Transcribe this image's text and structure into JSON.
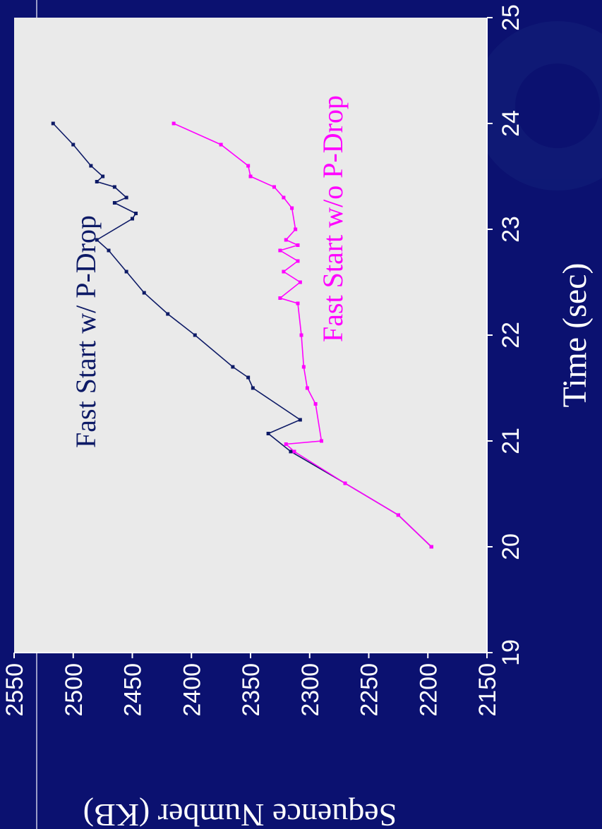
{
  "colors": {
    "background": "#0b1170",
    "plot_area": "#eaeaea",
    "series_with_pdrop": "#0d1a66",
    "series_without_pdrop": "#ff00ff",
    "text": "#ffffff"
  },
  "chart_data": {
    "type": "line",
    "orientation": "rotated-90",
    "xlabel": "Time (sec)",
    "ylabel": "Sequence Number (KB)",
    "xlim": [
      19,
      25
    ],
    "ylim": [
      2150,
      2550
    ],
    "xticks": [
      "19",
      "20",
      "21",
      "22",
      "23",
      "24",
      "25"
    ],
    "yticks": [
      "2150",
      "2200",
      "2250",
      "2300",
      "2350",
      "2400",
      "2450",
      "2500",
      "2550"
    ],
    "grid": false,
    "legend": "none",
    "series": [
      {
        "name": "Fast Start w/ P-Drop",
        "color": "#0d1a66",
        "points": [
          [
            20.0,
            2197
          ],
          [
            20.3,
            2225
          ],
          [
            20.6,
            2270
          ],
          [
            20.9,
            2316
          ],
          [
            21.07,
            2335
          ],
          [
            21.2,
            2308
          ],
          [
            21.5,
            2348
          ],
          [
            21.6,
            2352
          ],
          [
            21.7,
            2365
          ],
          [
            22.0,
            2397
          ],
          [
            22.2,
            2420
          ],
          [
            22.4,
            2440
          ],
          [
            22.6,
            2455
          ],
          [
            22.8,
            2470
          ],
          [
            22.9,
            2480
          ],
          [
            23.1,
            2450
          ],
          [
            23.15,
            2447
          ],
          [
            23.25,
            2465
          ],
          [
            23.3,
            2455
          ],
          [
            23.4,
            2465
          ],
          [
            23.45,
            2480
          ],
          [
            23.5,
            2475
          ],
          [
            23.6,
            2485
          ],
          [
            23.8,
            2500
          ],
          [
            24.0,
            2517
          ]
        ]
      },
      {
        "name": "Fast Start w/o P-Drop",
        "color": "#ff00ff",
        "points": [
          [
            20.0,
            2197
          ],
          [
            20.3,
            2225
          ],
          [
            20.6,
            2270
          ],
          [
            20.9,
            2313
          ],
          [
            20.97,
            2320
          ],
          [
            21.0,
            2290
          ],
          [
            21.35,
            2295
          ],
          [
            21.5,
            2302
          ],
          [
            21.7,
            2305
          ],
          [
            22.0,
            2307
          ],
          [
            22.3,
            2310
          ],
          [
            22.35,
            2325
          ],
          [
            22.5,
            2308
          ],
          [
            22.6,
            2322
          ],
          [
            22.7,
            2310
          ],
          [
            22.8,
            2325
          ],
          [
            22.85,
            2310
          ],
          [
            22.9,
            2320
          ],
          [
            23.0,
            2312
          ],
          [
            23.2,
            2315
          ],
          [
            23.3,
            2322
          ],
          [
            23.4,
            2330
          ],
          [
            23.5,
            2350
          ],
          [
            23.6,
            2352
          ],
          [
            23.8,
            2375
          ],
          [
            24.0,
            2415
          ]
        ]
      }
    ],
    "annotations": [
      "Fast Start w/ P-Drop",
      "Fast Start w/o P-Drop"
    ]
  }
}
